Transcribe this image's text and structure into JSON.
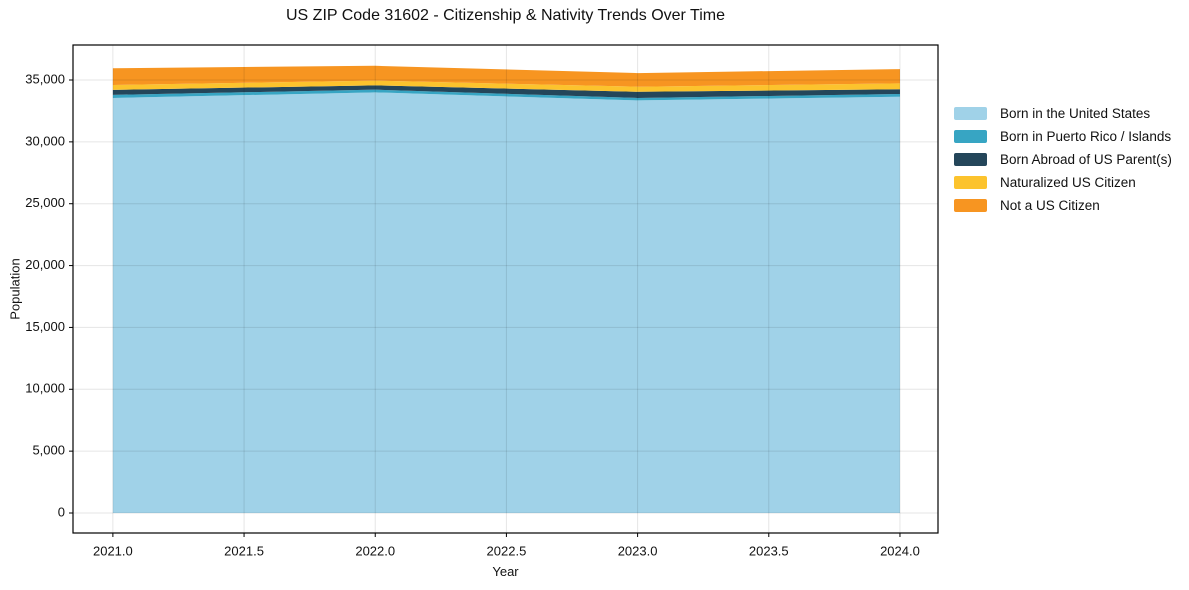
{
  "chart_data": {
    "type": "area",
    "stacked": true,
    "title": "US ZIP Code 31602 - Citizenship & Nativity Trends Over Time",
    "xlabel": "Year",
    "ylabel": "Population",
    "x": [
      2021,
      2022,
      2023,
      2024
    ],
    "series": [
      {
        "name": "Born in the United States",
        "color": "#a0d2e8",
        "values": [
          33550,
          34000,
          33350,
          33650
        ]
      },
      {
        "name": "Born in Puerto Rico / Islands",
        "color": "#37a5c3",
        "values": [
          250,
          220,
          200,
          220
        ]
      },
      {
        "name": "Born Abroad of US Parent(s)",
        "color": "#24465a",
        "values": [
          400,
          350,
          500,
          380
        ]
      },
      {
        "name": "Naturalized US Citizen",
        "color": "#fcc32d",
        "values": [
          400,
          380,
          410,
          480
        ]
      },
      {
        "name": "Not a US Citizen",
        "color": "#f79521",
        "values": [
          1350,
          1200,
          1100,
          1150
        ]
      }
    ],
    "xlim": [
      2020.848,
      2024.145
    ],
    "ylim": [
      -1617,
      37830
    ],
    "xtick_values": [
      2021.0,
      2021.5,
      2022.0,
      2022.5,
      2023.0,
      2023.5,
      2024.0
    ],
    "xtick_labels": [
      "2021.0",
      "2021.5",
      "2022.0",
      "2022.5",
      "2023.0",
      "2023.5",
      "2024.0"
    ],
    "ytick_values": [
      0,
      5000,
      10000,
      15000,
      20000,
      25000,
      30000,
      35000
    ],
    "ytick_labels": [
      "0",
      "5,000",
      "10,000",
      "15,000",
      "20,000",
      "25,000",
      "30,000",
      "35,000"
    ],
    "grid": true,
    "legend_position": "right-outside",
    "colors": {
      "spine": "#000000",
      "gridline": "rgba(0,0,0,0.10)",
      "tick": "#000000",
      "text": "#111111",
      "background": "#ffffff"
    }
  }
}
